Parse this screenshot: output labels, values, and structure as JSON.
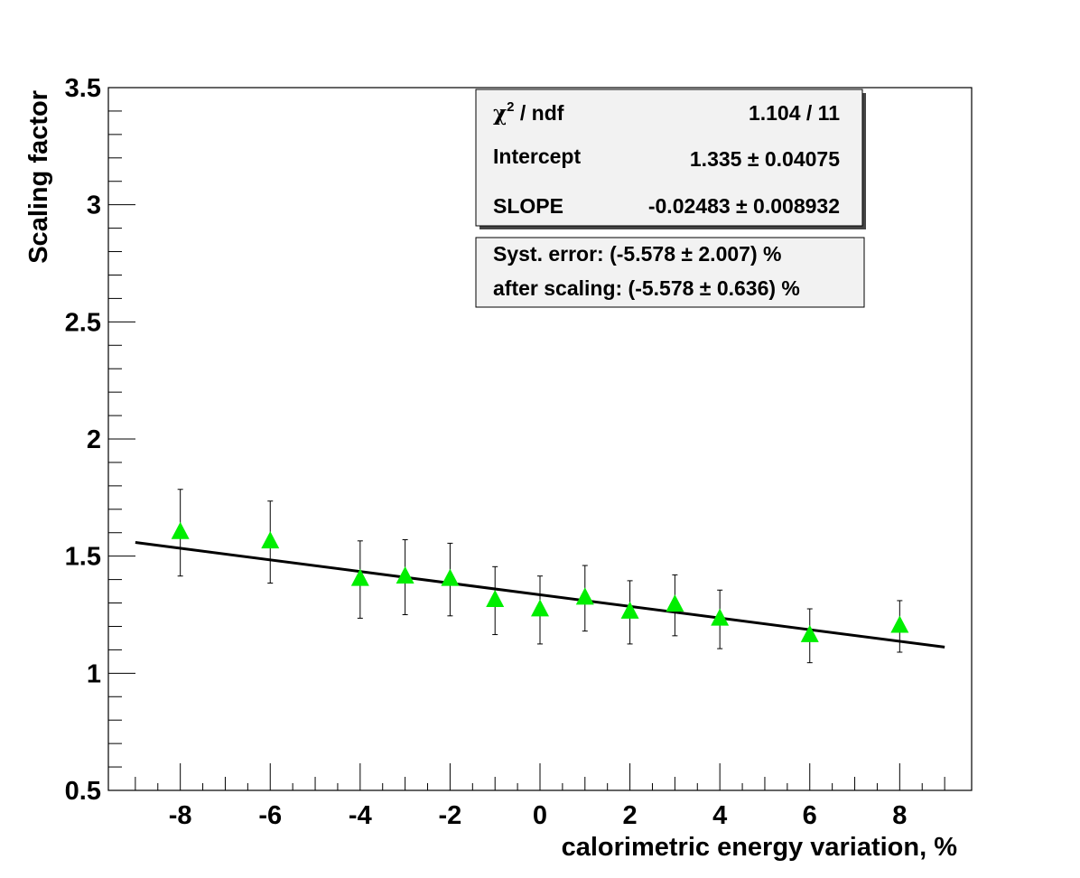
{
  "chart_data": {
    "type": "scatter",
    "xlabel": "calorimetric energy variation, %",
    "ylabel": "Scaling factor",
    "xlim": [
      -9.6,
      9.6
    ],
    "ylim": [
      0.5,
      3.5
    ],
    "x_ticks": [
      -8,
      -6,
      -4,
      -2,
      0,
      2,
      4,
      6,
      8
    ],
    "y_ticks": [
      0.5,
      1,
      1.5,
      2,
      2.5,
      3,
      3.5
    ],
    "x_tick_labels": [
      "-8",
      "-6",
      "-4",
      "-2",
      "0",
      "2",
      "4",
      "6",
      "8"
    ],
    "y_tick_labels": [
      "0.5",
      "1",
      "1.5",
      "2",
      "2.5",
      "3",
      "3.5"
    ],
    "marker_color": "#00ee00",
    "points": [
      {
        "x": -8,
        "y": 1.6,
        "err": 0.185
      },
      {
        "x": -6,
        "y": 1.56,
        "err": 0.175
      },
      {
        "x": -4,
        "y": 1.4,
        "err": 0.165
      },
      {
        "x": -3,
        "y": 1.41,
        "err": 0.16
      },
      {
        "x": -2,
        "y": 1.4,
        "err": 0.155
      },
      {
        "x": -1,
        "y": 1.31,
        "err": 0.145
      },
      {
        "x": 0,
        "y": 1.27,
        "err": 0.145
      },
      {
        "x": 1,
        "y": 1.32,
        "err": 0.14
      },
      {
        "x": 2,
        "y": 1.26,
        "err": 0.135
      },
      {
        "x": 3,
        "y": 1.29,
        "err": 0.13
      },
      {
        "x": 4,
        "y": 1.23,
        "err": 0.125
      },
      {
        "x": 6,
        "y": 1.16,
        "err": 0.115
      },
      {
        "x": 8,
        "y": 1.2,
        "err": 0.11
      }
    ],
    "fit": {
      "intercept": 1.335,
      "slope": -0.02483,
      "x_range": [
        -9,
        9
      ]
    }
  },
  "stats_box": {
    "rows": [
      {
        "label": "ndf",
        "value": "1.104 / 11"
      },
      {
        "label": "Intercept",
        "value": "1.335 ± 0.04075"
      },
      {
        "label": "SLOPE",
        "value": "-0.02483 ± 0.008932"
      }
    ],
    "chi_symbol": "χ",
    "chi_sup": "2",
    "chi_rest": " / ndf"
  },
  "syst_box": {
    "line1": "Syst. error: (-5.578 ± 2.007) %",
    "line2": "after scaling: (-5.578 ± 0.636) %"
  }
}
